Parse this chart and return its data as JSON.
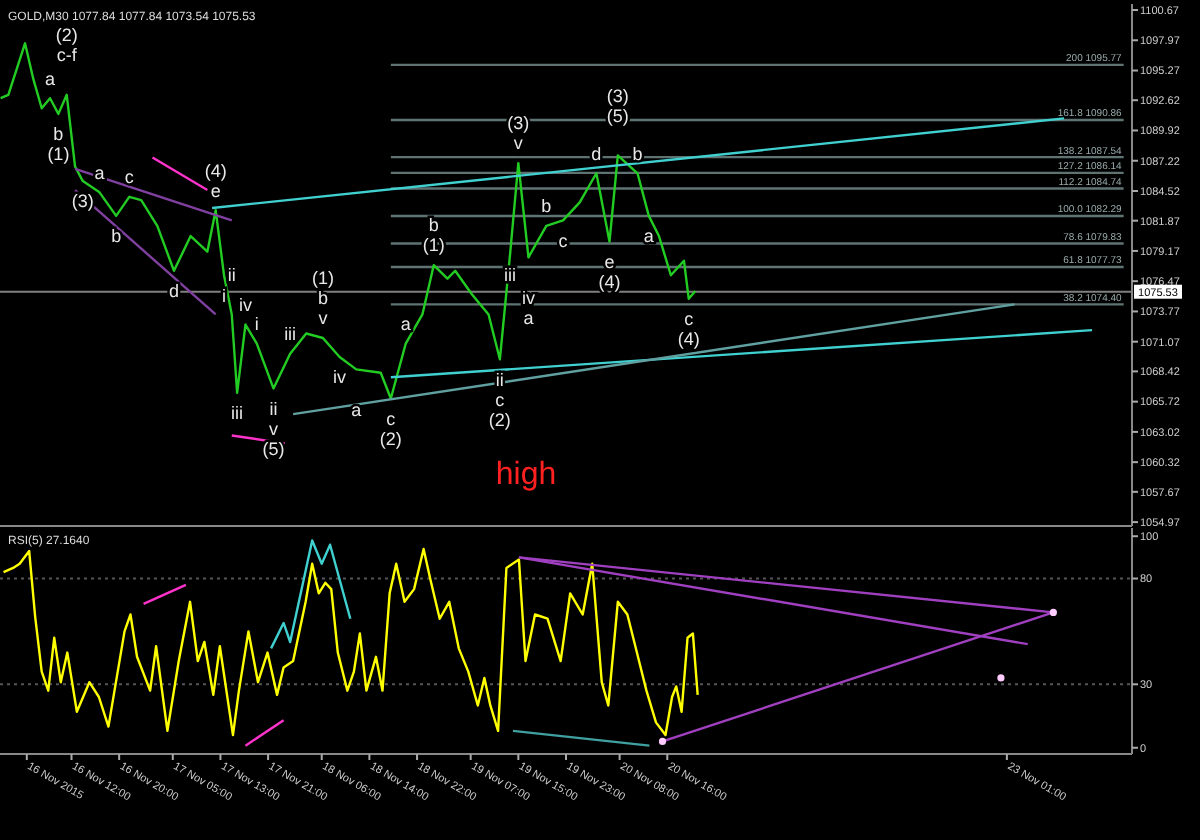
{
  "chart_data": [
    {
      "type": "line",
      "title": "GOLD,M30 1077.84 1077.84 1073.54 1075.53",
      "xlim": [
        "2015-11-16T00:00",
        "2015-11-23T22:00"
      ],
      "ylim": [
        1054.8,
        1100.85
      ],
      "yticks": [
        1054.97,
        1057.67,
        1060.32,
        1063.02,
        1065.72,
        1068.42,
        1071.07,
        1073.77,
        1076.47,
        1079.17,
        1081.87,
        1084.52,
        1087.22,
        1089.92,
        1092.62,
        1095.27,
        1097.97,
        1100.67
      ],
      "tick_labels": "y",
      "series": [
        {
          "name": "200 1095.77",
          "color": "#5f7373",
          "x": [
            "2015-11-18T17:36",
            "2015-11-23T20:36"
          ],
          "values": [
            1095.77,
            1095.77
          ]
        },
        {
          "name": "161.8 1090.86",
          "color": "#5f7373",
          "x": [
            "2015-11-18T17:36",
            "2015-11-23T20:36"
          ],
          "values": [
            1090.86,
            1090.86
          ]
        },
        {
          "name": "138.2 1087.54",
          "color": "#5f7373",
          "x": [
            "2015-11-18T17:36",
            "2015-11-23T20:36"
          ],
          "values": [
            1087.54,
            1087.54
          ]
        },
        {
          "name": "127.2 1086.14",
          "color": "#5f7373",
          "x": [
            "2015-11-18T17:36",
            "2015-11-23T20:36"
          ],
          "values": [
            1086.14,
            1086.14
          ]
        },
        {
          "name": "112.2 1084.74",
          "color": "#5f7373",
          "x": [
            "2015-11-18T17:36",
            "2015-11-23T20:36"
          ],
          "values": [
            1084.74,
            1084.74
          ]
        },
        {
          "name": "100.0 1082.29",
          "color": "#5f7373",
          "x": [
            "2015-11-18T17:36",
            "2015-11-23T20:36"
          ],
          "values": [
            1082.29,
            1082.29
          ]
        },
        {
          "name": "78.6 1079.83",
          "color": "#5f7373",
          "x": [
            "2015-11-18T17:36",
            "2015-11-23T20:36"
          ],
          "values": [
            1079.83,
            1079.83
          ]
        },
        {
          "name": "61.8 1077.73",
          "color": "#5f7373",
          "x": [
            "2015-11-18T17:36",
            "2015-11-23T20:36"
          ],
          "values": [
            1077.73,
            1077.73
          ]
        },
        {
          "name": "38.2 1074.40",
          "color": "#5f7373",
          "x": [
            "2015-11-18T17:36",
            "2015-11-23T20:36"
          ],
          "values": [
            1074.4,
            1074.4
          ]
        },
        {
          "color": "#22cc22",
          "x": [
            "2015-11-16T00:06",
            "2015-11-16T01:24",
            "2015-11-16T04:12",
            "2015-11-16T05:36",
            "2015-11-16T07:00",
            "2015-11-16T08:24",
            "2015-11-16T09:48",
            "2015-11-16T11:12",
            "2015-11-16T12:36",
            "2015-11-16T13:54",
            "2015-11-16T16:42",
            "2015-11-16T19:30",
            "2015-11-16T21:42",
            "2015-11-16T23:42",
            "2015-11-17T02:24",
            "2015-11-17T05:12",
            "2015-11-17T08:00",
            "2015-11-17T10:48",
            "2015-11-17T12:12",
            "2015-11-17T13:36",
            "2015-11-17T14:54",
            "2015-11-17T15:48",
            "2015-11-17T17:12",
            "2015-11-17T19:06",
            "2015-11-17T21:54",
            "2015-11-18T00:42",
            "2015-11-18T03:24",
            "2015-11-18T06:12",
            "2015-11-18T09:00",
            "2015-11-18T11:48",
            "2015-11-18T15:54",
            "2015-11-18T17:36",
            "2015-11-18T20:06",
            "2015-11-18T22:54",
            "2015-11-19T00:48",
            "2015-11-19T03:06",
            "2015-11-19T04:24",
            "2015-11-19T07:12",
            "2015-11-19T10:00",
            "2015-11-19T11:54",
            "2015-11-19T13:36",
            "2015-11-19T15:00",
            "2015-11-19T16:42",
            "2015-11-19T19:42",
            "2015-11-19T22:30",
            "2015-11-20T01:18",
            "2015-11-20T04:06",
            "2015-11-20T06:18",
            "2015-11-20T07:42",
            "2015-11-20T11:00",
            "2015-11-20T12:54",
            "2015-11-20T14:36",
            "2015-11-20T16:36",
            "2015-11-20T18:48",
            "2015-11-20T19:36",
            "2015-11-20T20:42"
          ],
          "values": [
            1092.8,
            1093.1,
            1097.7,
            1094.5,
            1091.9,
            1092.8,
            1091.4,
            1093.1,
            1086.7,
            1085.4,
            1084.4,
            1082.3,
            1084.0,
            1083.7,
            1081.4,
            1077.4,
            1080.5,
            1079.1,
            1082.8,
            1077.0,
            1073.5,
            1066.5,
            1072.6,
            1070.9,
            1066.9,
            1070.0,
            1071.8,
            1071.4,
            1069.7,
            1068.6,
            1068.3,
            1066.0,
            1070.9,
            1073.5,
            1077.9,
            1076.7,
            1077.4,
            1075.3,
            1073.5,
            1069.5,
            1078.8,
            1087.0,
            1078.6,
            1081.4,
            1081.9,
            1083.5,
            1086.1,
            1080.0,
            1087.7,
            1086.1,
            1082.3,
            1080.5,
            1077.0,
            1078.3,
            1074.9,
            1075.6
          ]
        },
        {
          "color": "#40d0d0",
          "x": [
            "2015-11-17T11:36",
            "2015-11-23T10:36"
          ],
          "values": [
            1083.0,
            1091.0
          ]
        },
        {
          "color": "#40d0d0",
          "x": [
            "2015-11-18T17:36",
            "2015-11-23T15:18"
          ],
          "values": [
            1067.9,
            1072.1
          ]
        },
        {
          "color": "#60a0a0",
          "x": [
            "2015-11-18T01:12",
            "2015-11-23T02:18"
          ],
          "values": [
            1064.6,
            1074.4
          ]
        },
        {
          "color": "#8040a0",
          "x": [
            "2015-11-16T12:36",
            "2015-11-17T14:54"
          ],
          "values": [
            1086.5,
            1081.9
          ]
        },
        {
          "color": "#8040a0",
          "x": [
            "2015-11-16T12:36",
            "2015-11-17T12:12"
          ],
          "values": [
            1084.6,
            1073.5
          ]
        },
        {
          "color": "#ff33cc",
          "x": [
            "2015-11-17T01:36",
            "2015-11-17T10:48"
          ],
          "values": [
            1087.5,
            1084.6
          ]
        },
        {
          "color": "#ff33cc",
          "x": [
            "2015-11-17T14:54",
            "2015-11-17T23:48"
          ],
          "values": [
            1062.7,
            1062.0
          ]
        }
      ],
      "ref_lines": [
        {
          "axis": "y",
          "value": 1075.53,
          "label": "1075.53",
          "color": "#808080"
        }
      ],
      "annotations": [
        {
          "text": "a",
          "x": "2015-11-16T08:24",
          "y": 1092.8
        },
        {
          "text": "c-f",
          "x": "2015-11-16T11:12",
          "y": 1093.1
        },
        {
          "text": "(2)",
          "x": "2015-11-16T11:12",
          "y": 1093.1
        },
        {
          "text": "b",
          "x": "2015-11-16T09:48",
          "y": 1091.4
        },
        {
          "text": "(1)",
          "x": "2015-11-16T09:48",
          "y": 1091.4
        },
        {
          "text": "a",
          "x": "2015-11-16T16:42",
          "y": 1084.4
        },
        {
          "text": "c",
          "x": "2015-11-16T21:42",
          "y": 1084.0
        },
        {
          "text": "e",
          "x": "2015-11-17T12:12",
          "y": 1082.8
        },
        {
          "text": "(4)",
          "x": "2015-11-17T12:12",
          "y": 1082.8
        },
        {
          "text": "(3)",
          "x": "2015-11-16T13:54",
          "y": 1085.4
        },
        {
          "text": "b",
          "x": "2015-11-16T19:30",
          "y": 1082.3
        },
        {
          "text": "d",
          "x": "2015-11-17T05:12",
          "y": 1077.4
        },
        {
          "text": "i",
          "x": "2015-11-17T13:36",
          "y": 1077.0
        },
        {
          "text": "ii",
          "x": "2015-11-17T14:54",
          "y": 1073.5
        },
        {
          "text": "iv",
          "x": "2015-11-17T17:12",
          "y": 1072.6
        },
        {
          "text": "iii",
          "x": "2015-11-17T15:48",
          "y": 1066.5
        },
        {
          "text": "ii",
          "x": "2015-11-17T21:54",
          "y": 1066.9
        },
        {
          "text": "v",
          "x": "2015-11-17T21:54",
          "y": 1066.9
        },
        {
          "text": "(5)",
          "x": "2015-11-17T21:54",
          "y": 1066.9
        },
        {
          "text": "i",
          "x": "2015-11-17T19:06",
          "y": 1070.9
        },
        {
          "text": "iii",
          "x": "2015-11-18T00:42",
          "y": 1070.0
        },
        {
          "text": "iv",
          "x": "2015-11-18T09:00",
          "y": 1069.7
        },
        {
          "text": "v",
          "x": "2015-11-18T06:12",
          "y": 1071.4
        },
        {
          "text": "b",
          "x": "2015-11-18T06:12",
          "y": 1071.4
        },
        {
          "text": "(1)",
          "x": "2015-11-18T06:12",
          "y": 1071.4
        },
        {
          "text": "a",
          "x": "2015-11-18T11:48",
          "y": 1068.6
        },
        {
          "text": "c",
          "x": "2015-11-18T17:36",
          "y": 1066.0
        },
        {
          "text": "(2)",
          "x": "2015-11-18T17:36",
          "y": 1066.0
        },
        {
          "text": "(1)",
          "x": "2015-11-19T00:48",
          "y": 1077.9
        },
        {
          "text": "b",
          "x": "2015-11-19T00:48",
          "y": 1077.9
        },
        {
          "text": "a",
          "x": "2015-11-18T20:06",
          "y": 1070.9
        },
        {
          "text": "ii",
          "x": "2015-11-19T11:54",
          "y": 1069.5
        },
        {
          "text": "c",
          "x": "2015-11-19T11:54",
          "y": 1069.5
        },
        {
          "text": "(2)",
          "x": "2015-11-19T11:54",
          "y": 1069.5
        },
        {
          "text": "iii",
          "x": "2015-11-19T13:36",
          "y": 1078.8
        },
        {
          "text": "v",
          "x": "2015-11-19T15:00",
          "y": 1087.0
        },
        {
          "text": "(3)",
          "x": "2015-11-19T15:00",
          "y": 1087.0
        },
        {
          "text": "iv",
          "x": "2015-11-19T16:42",
          "y": 1078.6
        },
        {
          "text": "a",
          "x": "2015-11-19T16:42",
          "y": 1078.6
        },
        {
          "text": "b",
          "x": "2015-11-19T19:42",
          "y": 1081.4
        },
        {
          "text": "c",
          "x": "2015-11-19T22:30",
          "y": 1081.9
        },
        {
          "text": "d",
          "x": "2015-11-20T04:06",
          "y": 1086.1
        },
        {
          "text": "e",
          "x": "2015-11-20T06:18",
          "y": 1080.0
        },
        {
          "text": "(4)",
          "x": "2015-11-20T06:18",
          "y": 1080.0
        },
        {
          "text": "(5)",
          "x": "2015-11-20T07:42",
          "y": 1087.7
        },
        {
          "text": "(3)",
          "x": "2015-11-20T07:42",
          "y": 1087.7
        },
        {
          "text": "b",
          "x": "2015-11-20T11:00",
          "y": 1086.1
        },
        {
          "text": "a",
          "x": "2015-11-20T12:54",
          "y": 1082.3
        },
        {
          "text": "c",
          "x": "2015-11-20T19:36",
          "y": 1074.9
        },
        {
          "text": "(4)",
          "x": "2015-11-20T19:36",
          "y": 1074.9
        },
        "high"
      ]
    },
    {
      "type": "line",
      "title": "RSI(5) 27.1640",
      "xlim": [
        "2015-11-16T00:00",
        "2015-11-23T22:00"
      ],
      "ylim": [
        -2,
        102
      ],
      "yticks": [
        0,
        30,
        80,
        100
      ],
      "xticks": [
        {
          "value": "2015-11-16T04:30",
          "label": "16 Nov 2015"
        },
        {
          "value": "2015-11-16T12:00",
          "label": "16 Nov 12:00"
        },
        {
          "value": "2015-11-16T20:00",
          "label": "16 Nov 20:00"
        },
        {
          "value": "2015-11-17T05:00",
          "label": "17 Nov 05:00"
        },
        {
          "value": "2015-11-17T13:00",
          "label": "17 Nov 13:00"
        },
        {
          "value": "2015-11-17T21:00",
          "label": "17 Nov 21:00"
        },
        {
          "value": "2015-11-18T06:00",
          "label": "18 Nov 06:00"
        },
        {
          "value": "2015-11-18T14:00",
          "label": "18 Nov 14:00"
        },
        {
          "value": "2015-11-18T22:00",
          "label": "18 Nov 22:00"
        },
        {
          "value": "2015-11-19T07:00",
          "label": "19 Nov 07:00"
        },
        {
          "value": "2015-11-19T15:00",
          "label": "19 Nov 15:00"
        },
        {
          "value": "2015-11-19T23:00",
          "label": "19 Nov 23:00"
        },
        {
          "value": "2015-11-20T08:00",
          "label": "20 Nov 08:00"
        },
        {
          "value": "2015-11-20T16:00",
          "label": "20 Nov 16:00"
        },
        {
          "value": "2015-11-23T01:00",
          "label": "23 Nov 01:00"
        }
      ],
      "series": [
        {
          "color": "#ffff00",
          "x": [
            "2015-11-16T00:36",
            "2015-11-16T02:12",
            "2015-11-16T03:18",
            "2015-11-16T04:54",
            "2015-11-16T05:54",
            "2015-11-16T07:00",
            "2015-11-16T08:06",
            "2015-11-16T09:06",
            "2015-11-16T10:12",
            "2015-11-16T11:18",
            "2015-11-16T12:54",
            "2015-11-16T15:00",
            "2015-11-16T16:36",
            "2015-11-16T18:12",
            "2015-11-16T20:54",
            "2015-11-16T21:54",
            "2015-11-16T23:00",
            "2015-11-17T01:12",
            "2015-11-17T02:12",
            "2015-11-17T04:06",
            "2015-11-17T06:00",
            "2015-11-17T07:54",
            "2015-11-17T09:12",
            "2015-11-17T10:18",
            "2015-11-17T11:48",
            "2015-11-17T12:54",
            "2015-11-17T15:06",
            "2015-11-17T16:06",
            "2015-11-17T17:42",
            "2015-11-17T19:18",
            "2015-11-17T20:54",
            "2015-11-17T22:30",
            "2015-11-17T23:36",
            "2015-11-18T01:12",
            "2015-11-18T03:18",
            "2015-11-18T04:24",
            "2015-11-18T05:30",
            "2015-11-18T06:36",
            "2015-11-18T07:36",
            "2015-11-18T08:42",
            "2015-11-18T10:18",
            "2015-11-18T11:24",
            "2015-11-18T12:24",
            "2015-11-18T13:30",
            "2015-11-18T15:06",
            "2015-11-18T16:12",
            "2015-11-18T17:24",
            "2015-11-18T18:30",
            "2015-11-18T19:54",
            "2015-11-18T21:30",
            "2015-11-18T23:06",
            "2015-11-19T00:12",
            "2015-11-19T01:48",
            "2015-11-19T03:24",
            "2015-11-19T05:00",
            "2015-11-19T06:36",
            "2015-11-19T08:12",
            "2015-11-19T09:18",
            "2015-11-19T10:18",
            "2015-11-19T11:36",
            "2015-11-19T13:00",
            "2015-11-19T15:06",
            "2015-11-19T16:12",
            "2015-11-19T17:48",
            "2015-11-19T19:54",
            "2015-11-19T22:06",
            "2015-11-19T23:42",
            "2015-11-20T01:48",
            "2015-11-20T03:24",
            "2015-11-20T05:00",
            "2015-11-20T06:06",
            "2015-11-20T07:42",
            "2015-11-20T09:18",
            "2015-11-20T10:54",
            "2015-11-20T12:30",
            "2015-11-20T14:06",
            "2015-11-20T15:42",
            "2015-11-20T16:48",
            "2015-11-20T17:30",
            "2015-11-20T18:24",
            "2015-11-20T19:24",
            "2015-11-20T20:18",
            "2015-11-20T21:06"
          ],
          "values": [
            83,
            85,
            87,
            93,
            62,
            36,
            27,
            52,
            31,
            45,
            17,
            31,
            24,
            10,
            55,
            63,
            43,
            27,
            48,
            8,
            41,
            69,
            41,
            50,
            25,
            48,
            6,
            27,
            55,
            31,
            45,
            25,
            38,
            41,
            69,
            87,
            73,
            78,
            75,
            45,
            27,
            36,
            54,
            27,
            43,
            27,
            73,
            87,
            69,
            75,
            94,
            80,
            61,
            69,
            47,
            36,
            20,
            33,
            20,
            8,
            85,
            89,
            41,
            63,
            61,
            41,
            73,
            63,
            87,
            31,
            20,
            69,
            63,
            45,
            27,
            12,
            6,
            24,
            29,
            17,
            52,
            54,
            25
          ]
        },
        {
          "color": "#40d0d0",
          "x": [
            "2015-11-17T21:30",
            "2015-11-17T23:36",
            "2015-11-18T00:42",
            "2015-11-18T04:24",
            "2015-11-18T06:00",
            "2015-11-18T07:24",
            "2015-11-18T10:48"
          ],
          "values": [
            47,
            59,
            50,
            98,
            87,
            96,
            61
          ]
        },
        {
          "color": "#ff33cc",
          "x": [
            "2015-11-17T00:06",
            "2015-11-17T07:12"
          ],
          "values": [
            68,
            77
          ]
        },
        {
          "color": "#ff33cc",
          "x": [
            "2015-11-17T17:12",
            "2015-11-17T23:36"
          ],
          "values": [
            1,
            13
          ]
        },
        {
          "color": "#a040c0",
          "x": [
            "2015-11-19T15:06",
            "2015-11-23T08:48"
          ],
          "values": [
            90,
            64
          ]
        },
        {
          "color": "#a040c0",
          "x": [
            "2015-11-19T15:06",
            "2015-11-23T04:30"
          ],
          "values": [
            90,
            49
          ]
        },
        {
          "color": "#a040c0",
          "x": [
            "2015-11-20T15:12",
            "2015-11-23T08:48"
          ],
          "values": [
            3,
            64
          ]
        },
        {
          "color": "#40a0a0",
          "x": [
            "2015-11-19T14:06",
            "2015-11-20T13:00"
          ],
          "values": [
            8,
            1
          ]
        },
        {
          "type": "scatter",
          "marker": "circle",
          "color": "#ffccff",
          "x": [
            "2015-11-20T15:12",
            "2015-11-23T00:00",
            "2015-11-23T08:48"
          ],
          "values": [
            3,
            33,
            64
          ]
        }
      ],
      "ref_lines": [
        {
          "axis": "y",
          "value": 30,
          "color": "#555555",
          "line_style": "dotted"
        },
        {
          "axis": "y",
          "value": 80,
          "color": "#555555",
          "line_style": "dotted"
        }
      ]
    }
  ]
}
